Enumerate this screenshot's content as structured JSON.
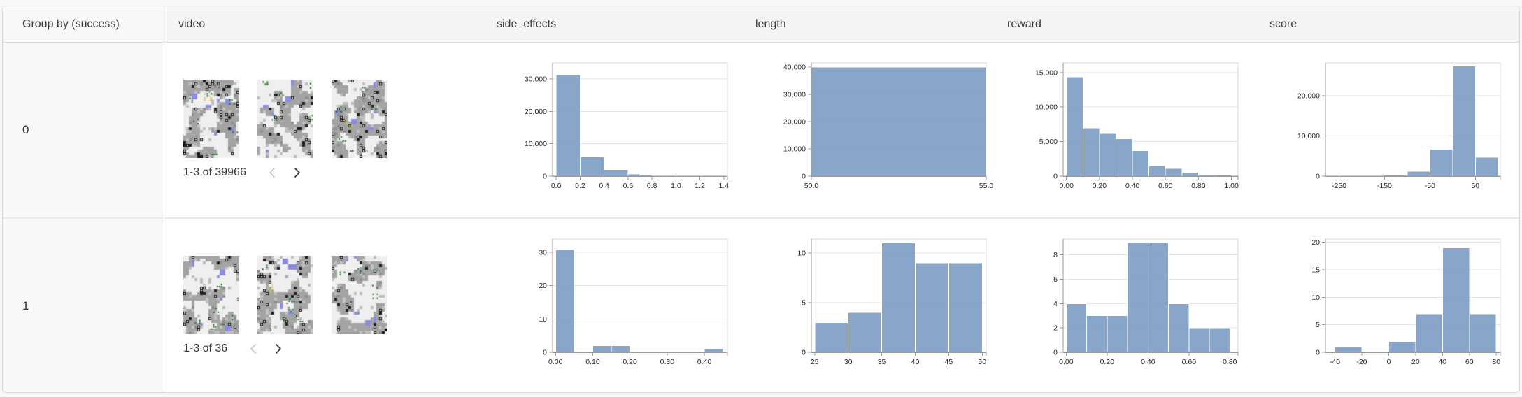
{
  "header": {
    "columns": [
      {
        "label": "Group by (success)"
      },
      {
        "label": "video"
      },
      {
        "label": "side_effects"
      },
      {
        "label": "length"
      },
      {
        "label": "reward"
      },
      {
        "label": "score"
      }
    ]
  },
  "rows": [
    {
      "group_label": "0",
      "video": {
        "caption": "1-3 of 39966",
        "thumbnail_count": 3
      }
    },
    {
      "group_label": "1",
      "video": {
        "caption": "1-3 of 36",
        "thumbnail_count": 3
      }
    }
  ],
  "icons": {
    "prev": "chevron-left",
    "next": "chevron-right"
  },
  "colors": {
    "bar_fill": "#7f9fc6",
    "grid_line": "#e4e4e4",
    "axis_line": "#9a9a9a",
    "plot_border": "#dadada",
    "tick_label": "#262626",
    "header_bg": "#f4f4f4",
    "group_col_bg": "#f8f8f8",
    "table_border": "#dcdcdc",
    "row_separator": "#e9e9e9",
    "page_bg": "#f6f7f7",
    "pager_disabled": "#c9c9c9",
    "pager_enabled": "#3a3a3a"
  },
  "chart_data": [
    {
      "row_group": "0",
      "column": "side_effects",
      "type": "bar",
      "x_domain": [
        -0.03,
        1.43
      ],
      "y_max": 35000,
      "bins": [
        {
          "x0": 0.0,
          "x1": 0.2,
          "count": 31300
        },
        {
          "x0": 0.2,
          "x1": 0.4,
          "count": 6100
        },
        {
          "x0": 0.4,
          "x1": 0.6,
          "count": 2000
        },
        {
          "x0": 0.6,
          "x1": 0.7,
          "count": 600
        },
        {
          "x0": 0.7,
          "x1": 0.8,
          "count": 380
        },
        {
          "x0": 0.8,
          "x1": 1.0,
          "count": 90
        },
        {
          "x0": 1.0,
          "x1": 1.2,
          "count": 50
        },
        {
          "x0": 1.2,
          "x1": 1.4,
          "count": 30
        }
      ],
      "x_ticks": [
        {
          "v": 0.0,
          "label": "0.0"
        },
        {
          "v": 0.2,
          "label": "0.2"
        },
        {
          "v": 0.4,
          "label": "0.4"
        },
        {
          "v": 0.6,
          "label": "0.6"
        },
        {
          "v": 0.8,
          "label": "0.8"
        },
        {
          "v": 1.0,
          "label": "1.0"
        },
        {
          "v": 1.2,
          "label": "1.2"
        },
        {
          "v": 1.4,
          "label": "1.4"
        }
      ],
      "y_ticks": [
        {
          "v": 0,
          "label": "0"
        },
        {
          "v": 10000,
          "label": "10,000"
        },
        {
          "v": 20000,
          "label": "20,000"
        },
        {
          "v": 30000,
          "label": "30,000"
        }
      ]
    },
    {
      "row_group": "0",
      "column": "length",
      "type": "bar",
      "x_domain": [
        50,
        55
      ],
      "y_max": 41500,
      "bins": [
        {
          "x0": 50,
          "x1": 55,
          "count": 39966
        }
      ],
      "x_ticks": [
        {
          "v": 50,
          "label": "50.0"
        },
        {
          "v": 55,
          "label": "55.0"
        }
      ],
      "y_ticks": [
        {
          "v": 0,
          "label": "0"
        },
        {
          "v": 10000,
          "label": "10,000"
        },
        {
          "v": 20000,
          "label": "20,000"
        },
        {
          "v": 30000,
          "label": "30,000"
        },
        {
          "v": 40000,
          "label": "40,000"
        }
      ]
    },
    {
      "row_group": "0",
      "column": "reward",
      "type": "bar",
      "x_domain": [
        -0.02,
        1.04
      ],
      "y_max": 16400,
      "bins": [
        {
          "x0": 0.0,
          "x1": 0.1,
          "count": 14400
        },
        {
          "x0": 0.1,
          "x1": 0.2,
          "count": 7000
        },
        {
          "x0": 0.2,
          "x1": 0.3,
          "count": 6200
        },
        {
          "x0": 0.3,
          "x1": 0.4,
          "count": 5400
        },
        {
          "x0": 0.4,
          "x1": 0.5,
          "count": 3700
        },
        {
          "x0": 0.5,
          "x1": 0.6,
          "count": 1500
        },
        {
          "x0": 0.6,
          "x1": 0.7,
          "count": 1100
        },
        {
          "x0": 0.7,
          "x1": 0.8,
          "count": 500
        },
        {
          "x0": 0.8,
          "x1": 0.9,
          "count": 220
        },
        {
          "x0": 0.9,
          "x1": 1.0,
          "count": 130
        }
      ],
      "x_ticks": [
        {
          "v": 0.0,
          "label": "0.00"
        },
        {
          "v": 0.2,
          "label": "0.20"
        },
        {
          "v": 0.4,
          "label": "0.40"
        },
        {
          "v": 0.6,
          "label": "0.60"
        },
        {
          "v": 0.8,
          "label": "0.80"
        },
        {
          "v": 1.0,
          "label": "1.00"
        }
      ],
      "y_ticks": [
        {
          "v": 0,
          "label": "0"
        },
        {
          "v": 5000,
          "label": "5,000"
        },
        {
          "v": 10000,
          "label": "10,000"
        },
        {
          "v": 15000,
          "label": "15,000"
        }
      ]
    },
    {
      "row_group": "0",
      "column": "score",
      "type": "bar",
      "x_domain": [
        -280,
        105
      ],
      "y_max": 28200,
      "bins": [
        {
          "x0": -250,
          "x1": -200,
          "count": 120
        },
        {
          "x0": -200,
          "x1": -150,
          "count": 160
        },
        {
          "x0": -150,
          "x1": -100,
          "count": 260
        },
        {
          "x0": -100,
          "x1": -50,
          "count": 1250
        },
        {
          "x0": -50,
          "x1": 0,
          "count": 6700
        },
        {
          "x0": 0,
          "x1": 50,
          "count": 27400
        },
        {
          "x0": 50,
          "x1": 100,
          "count": 4700
        }
      ],
      "x_ticks": [
        {
          "v": -250,
          "label": "-250"
        },
        {
          "v": -150,
          "label": "-150"
        },
        {
          "v": -50,
          "label": "-50"
        },
        {
          "v": 50,
          "label": "50"
        }
      ],
      "y_ticks": [
        {
          "v": 0,
          "label": "0"
        },
        {
          "v": 10000,
          "label": "10,000"
        },
        {
          "v": 20000,
          "label": "20,000"
        }
      ]
    },
    {
      "row_group": "1",
      "column": "side_effects",
      "type": "bar",
      "x_domain": [
        -0.008,
        0.462
      ],
      "y_max": 34,
      "bins": [
        {
          "x0": 0.0,
          "x1": 0.05,
          "count": 31
        },
        {
          "x0": 0.1,
          "x1": 0.15,
          "count": 2
        },
        {
          "x0": 0.15,
          "x1": 0.2,
          "count": 2
        },
        {
          "x0": 0.4,
          "x1": 0.45,
          "count": 1
        }
      ],
      "x_ticks": [
        {
          "v": 0.0,
          "label": "0.00"
        },
        {
          "v": 0.1,
          "label": "0.10"
        },
        {
          "v": 0.2,
          "label": "0.20"
        },
        {
          "v": 0.3,
          "label": "0.30"
        },
        {
          "v": 0.4,
          "label": "0.40"
        }
      ],
      "y_ticks": [
        {
          "v": 0,
          "label": "0"
        },
        {
          "v": 10,
          "label": "10"
        },
        {
          "v": 20,
          "label": "20"
        },
        {
          "v": 30,
          "label": "30"
        }
      ]
    },
    {
      "row_group": "1",
      "column": "length",
      "type": "bar",
      "x_domain": [
        24.5,
        50.6
      ],
      "y_max": 11.4,
      "bins": [
        {
          "x0": 25,
          "x1": 30,
          "count": 3
        },
        {
          "x0": 30,
          "x1": 35,
          "count": 4
        },
        {
          "x0": 35,
          "x1": 40,
          "count": 11
        },
        {
          "x0": 40,
          "x1": 45,
          "count": 9
        },
        {
          "x0": 45,
          "x1": 50,
          "count": 9
        }
      ],
      "x_ticks": [
        {
          "v": 25,
          "label": "25"
        },
        {
          "v": 30,
          "label": "30"
        },
        {
          "v": 35,
          "label": "35"
        },
        {
          "v": 40,
          "label": "40"
        },
        {
          "v": 45,
          "label": "45"
        },
        {
          "v": 50,
          "label": "50"
        }
      ],
      "y_ticks": [
        {
          "v": 0,
          "label": "0"
        },
        {
          "v": 5,
          "label": "5"
        },
        {
          "v": 10,
          "label": "10"
        }
      ]
    },
    {
      "row_group": "1",
      "column": "reward",
      "type": "bar",
      "x_domain": [
        -0.015,
        0.84
      ],
      "y_max": 9.3,
      "bins": [
        {
          "x0": 0.0,
          "x1": 0.1,
          "count": 4
        },
        {
          "x0": 0.1,
          "x1": 0.2,
          "count": 3
        },
        {
          "x0": 0.2,
          "x1": 0.3,
          "count": 3
        },
        {
          "x0": 0.3,
          "x1": 0.4,
          "count": 9
        },
        {
          "x0": 0.4,
          "x1": 0.5,
          "count": 9
        },
        {
          "x0": 0.5,
          "x1": 0.6,
          "count": 4
        },
        {
          "x0": 0.6,
          "x1": 0.7,
          "count": 2
        },
        {
          "x0": 0.7,
          "x1": 0.8,
          "count": 2
        }
      ],
      "x_ticks": [
        {
          "v": 0.0,
          "label": "0.00"
        },
        {
          "v": 0.2,
          "label": "0.20"
        },
        {
          "v": 0.4,
          "label": "0.40"
        },
        {
          "v": 0.6,
          "label": "0.60"
        },
        {
          "v": 0.8,
          "label": "0.80"
        }
      ],
      "y_ticks": [
        {
          "v": 0,
          "label": "0"
        },
        {
          "v": 2,
          "label": "2"
        },
        {
          "v": 4,
          "label": "4"
        },
        {
          "v": 6,
          "label": "6"
        },
        {
          "v": 8,
          "label": "8"
        }
      ]
    },
    {
      "row_group": "1",
      "column": "score",
      "type": "bar",
      "x_domain": [
        -47,
        83
      ],
      "y_max": 20.6,
      "bins": [
        {
          "x0": -40,
          "x1": -20,
          "count": 1
        },
        {
          "x0": 0,
          "x1": 20,
          "count": 2
        },
        {
          "x0": 20,
          "x1": 40,
          "count": 7
        },
        {
          "x0": 40,
          "x1": 60,
          "count": 19
        },
        {
          "x0": 60,
          "x1": 80,
          "count": 7
        }
      ],
      "x_ticks": [
        {
          "v": -40,
          "label": "-40"
        },
        {
          "v": -20,
          "label": "-20"
        },
        {
          "v": 0,
          "label": "0"
        },
        {
          "v": 20,
          "label": "20"
        },
        {
          "v": 40,
          "label": "40"
        },
        {
          "v": 60,
          "label": "60"
        },
        {
          "v": 80,
          "label": "80"
        }
      ],
      "y_ticks": [
        {
          "v": 0,
          "label": "0"
        },
        {
          "v": 5,
          "label": "5"
        },
        {
          "v": 10,
          "label": "10"
        },
        {
          "v": 15,
          "label": "15"
        },
        {
          "v": 20,
          "label": "20"
        }
      ]
    }
  ]
}
